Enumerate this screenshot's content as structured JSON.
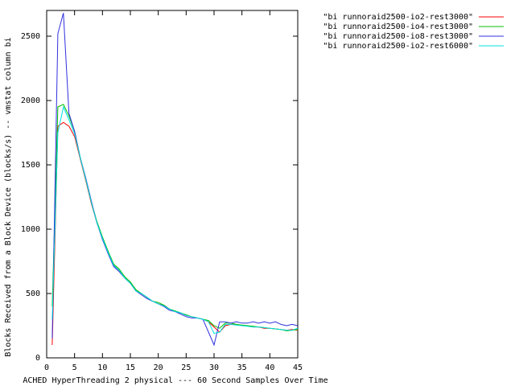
{
  "chart_data": {
    "type": "line",
    "xlabel": "ACHED HyperThreading 2 physical --- 60 Second Samples Over Time",
    "ylabel": "Blocks Received from a Block Device (blocks/s) -- vmstat column bi",
    "x": [
      1,
      2,
      3,
      4,
      5,
      6,
      7,
      8,
      9,
      10,
      11,
      12,
      13,
      14,
      15,
      16,
      17,
      18,
      19,
      20,
      21,
      22,
      23,
      24,
      25,
      26,
      27,
      28,
      29,
      30,
      31,
      32,
      33,
      34,
      35,
      36,
      37,
      38,
      39,
      40,
      41,
      42,
      43,
      44,
      45
    ],
    "xlim": [
      0,
      45
    ],
    "xticks": [
      0,
      5,
      10,
      15,
      20,
      25,
      30,
      35,
      40,
      45
    ],
    "ylim": [
      0,
      2700
    ],
    "yticks": [
      0,
      500,
      1000,
      1500,
      2000,
      2500
    ],
    "series": [
      {
        "name": "\"bi runnoraid2500-io2-rest3000\"",
        "color": "#ff0000",
        "values": [
          100,
          1800,
          1830,
          1800,
          1720,
          1550,
          1380,
          1200,
          1050,
          930,
          820,
          720,
          680,
          620,
          580,
          520,
          500,
          470,
          440,
          420,
          410,
          380,
          360,
          350,
          330,
          320,
          310,
          300,
          280,
          240,
          200,
          250,
          260,
          260,
          250,
          250,
          240,
          240,
          230,
          230,
          225,
          220,
          215,
          220,
          215
        ]
      },
      {
        "name": "\"bi runnoraid2500-io4-rest3000\"",
        "color": "#00c000",
        "values": [
          400,
          1950,
          1970,
          1880,
          1760,
          1560,
          1390,
          1210,
          1060,
          940,
          830,
          730,
          690,
          630,
          590,
          530,
          500,
          470,
          440,
          430,
          410,
          380,
          365,
          350,
          335,
          320,
          310,
          300,
          290,
          250,
          230,
          270,
          270,
          260,
          255,
          250,
          245,
          240,
          235,
          230,
          225,
          220,
          210,
          215,
          220
        ]
      },
      {
        "name": "\"bi runnoraid2500-io8-rest3000\"",
        "color": "#3030e0",
        "values": [
          150,
          2520,
          2680,
          1900,
          1760,
          1560,
          1400,
          1220,
          1050,
          920,
          810,
          710,
          670,
          620,
          580,
          520,
          490,
          460,
          440,
          420,
          400,
          370,
          360,
          340,
          320,
          310,
          310,
          300,
          200,
          100,
          280,
          280,
          270,
          280,
          270,
          270,
          280,
          270,
          280,
          270,
          280,
          260,
          250,
          260,
          250
        ]
      },
      {
        "name": "\"bi runnoraid2500-io2-rest6000\"",
        "color": "#00e0e0",
        "values": [
          300,
          1750,
          1950,
          1850,
          1740,
          1560,
          1390,
          1210,
          1050,
          930,
          820,
          720,
          680,
          620,
          580,
          520,
          500,
          470,
          440,
          420,
          405,
          380,
          360,
          350,
          330,
          320,
          310,
          300,
          280,
          190,
          200,
          260,
          260,
          255,
          250,
          245,
          240,
          240,
          235,
          230,
          225,
          220,
          215,
          215,
          230
        ]
      }
    ]
  }
}
